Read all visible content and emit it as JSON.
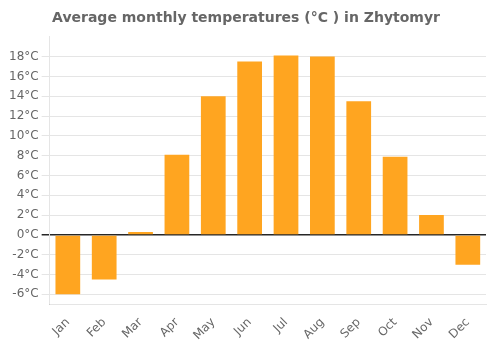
{
  "chart_data": {
    "type": "bar",
    "title": "Average monthly temperatures (°C ) in Zhytomyr",
    "categories": [
      "Jan",
      "Feb",
      "Mar",
      "Apr",
      "May",
      "Jun",
      "Jul",
      "Aug",
      "Sep",
      "Oct",
      "Nov",
      "Dec"
    ],
    "values": [
      -6.0,
      -4.5,
      0.3,
      8.1,
      14.0,
      17.5,
      18.1,
      18.0,
      13.5,
      7.9,
      2.0,
      -3.0
    ],
    "color": "#FFA520",
    "ylim": [
      -7,
      20
    ],
    "yticks": [
      {
        "value": -6,
        "label": "-6°C"
      },
      {
        "value": -4,
        "label": "-4°C"
      },
      {
        "value": -2,
        "label": "-2°C"
      },
      {
        "value": 0,
        "label": "0°C"
      },
      {
        "value": 2,
        "label": "2°C"
      },
      {
        "value": 4,
        "label": "4°C"
      },
      {
        "value": 6,
        "label": "6°C"
      },
      {
        "value": 8,
        "label": "8°C"
      },
      {
        "value": 10,
        "label": "10°C"
      },
      {
        "value": 12,
        "label": "12°C"
      },
      {
        "value": 14,
        "label": "14°C"
      },
      {
        "value": 16,
        "label": "16°C"
      },
      {
        "value": 18,
        "label": "18°C"
      }
    ],
    "grid": true
  }
}
